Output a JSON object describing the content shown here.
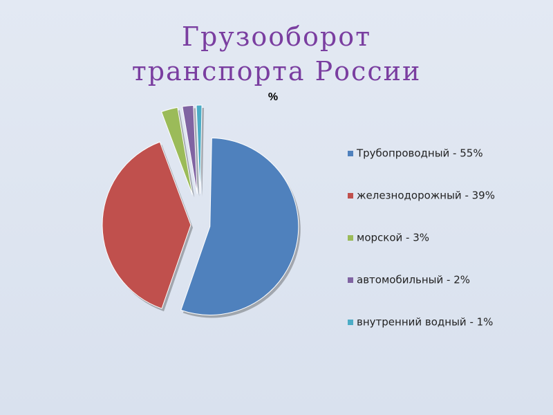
{
  "chart_data": {
    "type": "pie",
    "title": "Грузооборот транспорта России",
    "subtitle": "%",
    "categories": [
      "Трубопроводный - 55%",
      "железнодорожный - 39%",
      "морской - 3%",
      "автомобильный - 2%",
      "внутренний водный - 1%"
    ],
    "values": [
      55,
      39,
      3,
      2,
      1
    ],
    "colors": [
      "#4f81bd",
      "#c0504d",
      "#9bbb59",
      "#8064a2",
      "#4bacc6"
    ],
    "legend": "right"
  }
}
